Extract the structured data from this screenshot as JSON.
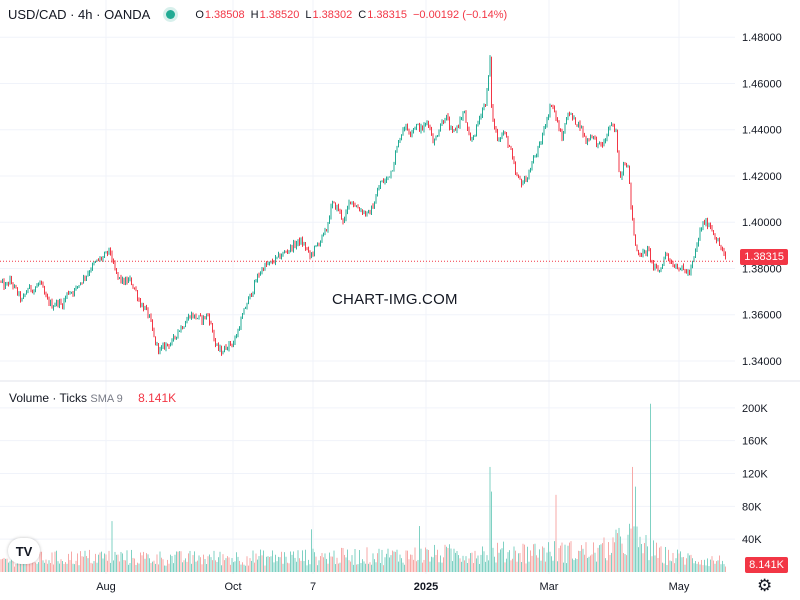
{
  "header": {
    "symbol": "USD/CAD · 4h · OANDA",
    "o_label": "O",
    "o_value": "1.38508",
    "h_label": "H",
    "h_value": "1.38520",
    "l_label": "L",
    "l_value": "1.38302",
    "c_label": "C",
    "c_value": "1.38315",
    "change": "−0.00192 (−0.14%)"
  },
  "volume_header": {
    "title": "Volume · Ticks",
    "sma_label": "SMA 9",
    "value": "8.141K"
  },
  "watermark": "CHART-IMG.COM",
  "price_badge": "1.38315",
  "volume_badge": "8.141K",
  "logo_text": "TV",
  "colors": {
    "up": "#22ab94",
    "down": "#f23645",
    "grid": "#f0f3fa",
    "text": "#131722"
  },
  "chart_data": [
    {
      "type": "candlestick",
      "title": "USD/CAD · 4h · OANDA",
      "x_tick_labels": [
        "Aug",
        "Oct",
        "7",
        "2025",
        "Mar",
        "May"
      ],
      "y_ticks": [
        1.34,
        1.36,
        1.38,
        1.4,
        1.42,
        1.44,
        1.46,
        1.48
      ],
      "y_tick_labels": [
        "1.34000",
        "1.36000",
        "1.38000",
        "1.40000",
        "1.42000",
        "1.44000",
        "1.46000",
        "1.48000"
      ],
      "ylim": [
        1.3335,
        1.484
      ],
      "last_price": 1.38315,
      "grid": true,
      "path_close": [
        {
          "x": 0,
          "y": 1.3745
        },
        {
          "x": 5,
          "y": 1.372
        },
        {
          "x": 10,
          "y": 1.3748
        },
        {
          "x": 16,
          "y": 1.3705
        },
        {
          "x": 22,
          "y": 1.366
        },
        {
          "x": 28,
          "y": 1.3715
        },
        {
          "x": 34,
          "y": 1.371
        },
        {
          "x": 40,
          "y": 1.374
        },
        {
          "x": 46,
          "y": 1.367
        },
        {
          "x": 52,
          "y": 1.364
        },
        {
          "x": 58,
          "y": 1.3655
        },
        {
          "x": 62,
          "y": 1.364
        },
        {
          "x": 68,
          "y": 1.37
        },
        {
          "x": 74,
          "y": 1.37
        },
        {
          "x": 80,
          "y": 1.374
        },
        {
          "x": 86,
          "y": 1.377
        },
        {
          "x": 92,
          "y": 1.381
        },
        {
          "x": 98,
          "y": 1.3835
        },
        {
          "x": 104,
          "y": 1.385
        },
        {
          "x": 110,
          "y": 1.388
        },
        {
          "x": 114,
          "y": 1.38
        },
        {
          "x": 118,
          "y": 1.376
        },
        {
          "x": 124,
          "y": 1.374
        },
        {
          "x": 130,
          "y": 1.375
        },
        {
          "x": 136,
          "y": 1.37
        },
        {
          "x": 140,
          "y": 1.365
        },
        {
          "x": 146,
          "y": 1.362
        },
        {
          "x": 150,
          "y": 1.358
        },
        {
          "x": 155,
          "y": 1.348
        },
        {
          "x": 160,
          "y": 1.3445
        },
        {
          "x": 166,
          "y": 1.347
        },
        {
          "x": 172,
          "y": 1.348
        },
        {
          "x": 178,
          "y": 1.353
        },
        {
          "x": 184,
          "y": 1.356
        },
        {
          "x": 190,
          "y": 1.36
        },
        {
          "x": 196,
          "y": 1.359
        },
        {
          "x": 202,
          "y": 1.358
        },
        {
          "x": 208,
          "y": 1.36
        },
        {
          "x": 212,
          "y": 1.354
        },
        {
          "x": 216,
          "y": 1.346
        },
        {
          "x": 222,
          "y": 1.344
        },
        {
          "x": 228,
          "y": 1.347
        },
        {
          "x": 234,
          "y": 1.348
        },
        {
          "x": 240,
          "y": 1.356
        },
        {
          "x": 246,
          "y": 1.364
        },
        {
          "x": 252,
          "y": 1.37
        },
        {
          "x": 258,
          "y": 1.377
        },
        {
          "x": 264,
          "y": 1.381
        },
        {
          "x": 270,
          "y": 1.382
        },
        {
          "x": 276,
          "y": 1.384
        },
        {
          "x": 282,
          "y": 1.386
        },
        {
          "x": 288,
          "y": 1.388
        },
        {
          "x": 294,
          "y": 1.39
        },
        {
          "x": 300,
          "y": 1.392
        },
        {
          "x": 306,
          "y": 1.389
        },
        {
          "x": 310,
          "y": 1.385
        },
        {
          "x": 314,
          "y": 1.388
        },
        {
          "x": 320,
          "y": 1.392
        },
        {
          "x": 326,
          "y": 1.396
        },
        {
          "x": 332,
          "y": 1.408
        },
        {
          "x": 338,
          "y": 1.406
        },
        {
          "x": 344,
          "y": 1.4
        },
        {
          "x": 350,
          "y": 1.41
        },
        {
          "x": 356,
          "y": 1.407
        },
        {
          "x": 362,
          "y": 1.405
        },
        {
          "x": 368,
          "y": 1.403
        },
        {
          "x": 374,
          "y": 1.408
        },
        {
          "x": 380,
          "y": 1.417
        },
        {
          "x": 386,
          "y": 1.418
        },
        {
          "x": 392,
          "y": 1.423
        },
        {
          "x": 398,
          "y": 1.434
        },
        {
          "x": 404,
          "y": 1.442
        },
        {
          "x": 410,
          "y": 1.439
        },
        {
          "x": 416,
          "y": 1.442
        },
        {
          "x": 422,
          "y": 1.44
        },
        {
          "x": 428,
          "y": 1.444
        },
        {
          "x": 434,
          "y": 1.434
        },
        {
          "x": 440,
          "y": 1.442
        },
        {
          "x": 446,
          "y": 1.446
        },
        {
          "x": 452,
          "y": 1.438
        },
        {
          "x": 458,
          "y": 1.442
        },
        {
          "x": 464,
          "y": 1.448
        },
        {
          "x": 470,
          "y": 1.434
        },
        {
          "x": 476,
          "y": 1.44
        },
        {
          "x": 482,
          "y": 1.449
        },
        {
          "x": 486,
          "y": 1.452
        },
        {
          "x": 490,
          "y": 1.47
        },
        {
          "x": 492,
          "y": 1.445
        },
        {
          "x": 498,
          "y": 1.436
        },
        {
          "x": 504,
          "y": 1.439
        },
        {
          "x": 510,
          "y": 1.432
        },
        {
          "x": 516,
          "y": 1.42
        },
        {
          "x": 522,
          "y": 1.417
        },
        {
          "x": 528,
          "y": 1.42
        },
        {
          "x": 534,
          "y": 1.428
        },
        {
          "x": 540,
          "y": 1.433
        },
        {
          "x": 546,
          "y": 1.444
        },
        {
          "x": 552,
          "y": 1.452
        },
        {
          "x": 556,
          "y": 1.445
        },
        {
          "x": 562,
          "y": 1.436
        },
        {
          "x": 568,
          "y": 1.448
        },
        {
          "x": 574,
          "y": 1.444
        },
        {
          "x": 580,
          "y": 1.442
        },
        {
          "x": 586,
          "y": 1.435
        },
        {
          "x": 592,
          "y": 1.438
        },
        {
          "x": 598,
          "y": 1.433
        },
        {
          "x": 604,
          "y": 1.434
        },
        {
          "x": 610,
          "y": 1.442
        },
        {
          "x": 616,
          "y": 1.439
        },
        {
          "x": 620,
          "y": 1.418
        },
        {
          "x": 624,
          "y": 1.427
        },
        {
          "x": 628,
          "y": 1.424
        },
        {
          "x": 632,
          "y": 1.402
        },
        {
          "x": 636,
          "y": 1.388
        },
        {
          "x": 642,
          "y": 1.386
        },
        {
          "x": 648,
          "y": 1.388
        },
        {
          "x": 654,
          "y": 1.38
        },
        {
          "x": 660,
          "y": 1.379
        },
        {
          "x": 666,
          "y": 1.387
        },
        {
          "x": 672,
          "y": 1.382
        },
        {
          "x": 678,
          "y": 1.381
        },
        {
          "x": 684,
          "y": 1.379
        },
        {
          "x": 690,
          "y": 1.378
        },
        {
          "x": 696,
          "y": 1.388
        },
        {
          "x": 700,
          "y": 1.396
        },
        {
          "x": 704,
          "y": 1.4
        },
        {
          "x": 710,
          "y": 1.399
        },
        {
          "x": 716,
          "y": 1.393
        },
        {
          "x": 722,
          "y": 1.388
        },
        {
          "x": 726,
          "y": 1.3832
        }
      ]
    },
    {
      "type": "bar",
      "title": "Volume · Ticks",
      "series": [
        {
          "name": "SMA 9",
          "values": [
            8.141
          ]
        }
      ],
      "y_ticks": [
        40,
        80,
        120,
        160,
        200
      ],
      "y_tick_labels": [
        "40K",
        "80K",
        "120K",
        "160K",
        "200K"
      ],
      "unit": "K ticks",
      "ylim": [
        0,
        212
      ],
      "last_value": 8.141,
      "volume_profile": [
        {
          "x": 0,
          "v": 18
        },
        {
          "x": 100,
          "v": 22
        },
        {
          "x": 180,
          "v": 20
        },
        {
          "x": 300,
          "v": 22
        },
        {
          "x": 400,
          "v": 24
        },
        {
          "x": 480,
          "v": 28
        },
        {
          "x": 540,
          "v": 30
        },
        {
          "x": 600,
          "v": 30
        },
        {
          "x": 630,
          "v": 50
        },
        {
          "x": 660,
          "v": 25
        },
        {
          "x": 700,
          "v": 18
        },
        {
          "x": 726,
          "v": 16
        }
      ],
      "volume_spikes": [
        {
          "x": 112,
          "v": 62
        },
        {
          "x": 312,
          "v": 52
        },
        {
          "x": 420,
          "v": 56
        },
        {
          "x": 437,
          "v": 58
        },
        {
          "x": 490,
          "v": 128
        },
        {
          "x": 492,
          "v": 98
        },
        {
          "x": 556,
          "v": 94
        },
        {
          "x": 560,
          "v": 72
        },
        {
          "x": 620,
          "v": 110
        },
        {
          "x": 623,
          "v": 88
        },
        {
          "x": 626,
          "v": 152
        },
        {
          "x": 629,
          "v": 138
        },
        {
          "x": 633,
          "v": 128
        },
        {
          "x": 636,
          "v": 104
        },
        {
          "x": 651,
          "v": 205
        },
        {
          "x": 653,
          "v": 135
        }
      ]
    }
  ]
}
